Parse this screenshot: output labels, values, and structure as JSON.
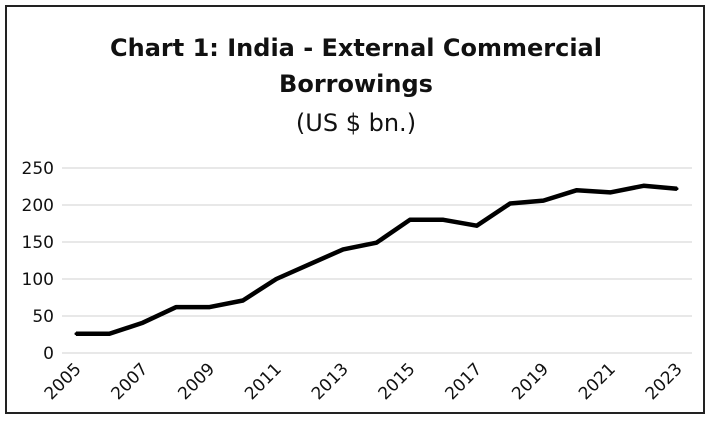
{
  "chart_data": {
    "type": "line",
    "title": "Chart 1: India - External Commercial Borrowings",
    "subtitle": "(US $ bn.)",
    "xlabel": "",
    "ylabel": "",
    "x": [
      2005,
      2006,
      2007,
      2008,
      2009,
      2010,
      2011,
      2012,
      2013,
      2014,
      2015,
      2016,
      2017,
      2018,
      2019,
      2020,
      2021,
      2022,
      2023
    ],
    "series": [
      {
        "name": "",
        "values": [
          26,
          26,
          41,
          62,
          62,
          71,
          100,
          120,
          140,
          149,
          180,
          180,
          172,
          202,
          206,
          220,
          217,
          226,
          222
        ],
        "color": "#000000"
      }
    ],
    "x_tick_labels": [
      "2005",
      "2007",
      "2009",
      "2011",
      "2013",
      "2015",
      "2017",
      "2019",
      "2021",
      "2023"
    ],
    "y_ticks": [
      0,
      50,
      100,
      150,
      200,
      250
    ],
    "ylim": [
      0,
      250
    ],
    "grid": "horizontal",
    "legend": "none",
    "gridline_color": "#d0d0d0"
  }
}
